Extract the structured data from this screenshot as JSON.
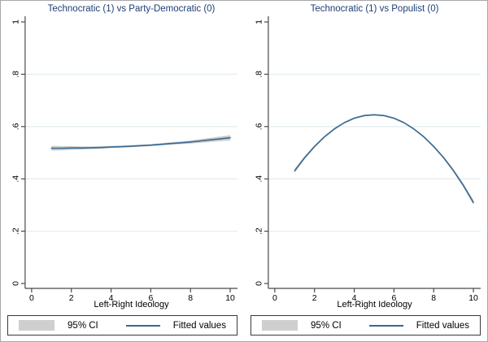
{
  "colors": {
    "fitted_line": "#376a93",
    "ci_band": "#cccccc",
    "gridline": "#e4eef3",
    "axis": "#4a4a4a",
    "tick_label": "#000000",
    "title_text": "#1e3e77",
    "legend_border": "#3a3a3a",
    "legend_swatch": "#cfcfcf",
    "figure_border": "#a8a8a8"
  },
  "chart_data": [
    {
      "type": "line",
      "title": "Technocratic (1) vs Party-Democratic (0)",
      "xlabel": "Left-Right Ideology",
      "ylabel": "",
      "xlim": [
        0,
        10
      ],
      "ylim": [
        0,
        1
      ],
      "x_tick_values": [
        0,
        2,
        4,
        6,
        8,
        10
      ],
      "x_tick_labels": [
        "0",
        "2",
        "4",
        "6",
        "8",
        "10"
      ],
      "y_tick_values": [
        0,
        0.2,
        0.4,
        0.6,
        0.8,
        1
      ],
      "y_tick_labels": [
        "0",
        ".2",
        ".4",
        ".6",
        ".8",
        "1"
      ],
      "grid_y": [
        0.2,
        0.4,
        0.6,
        0.8
      ],
      "legend_ci": "95% CI",
      "legend_fitted": "Fitted values",
      "x": [
        1,
        1.5,
        2,
        2.5,
        3,
        3.5,
        4,
        4.5,
        5,
        5.5,
        6,
        6.5,
        7,
        7.5,
        8,
        8.5,
        9,
        9.5,
        10
      ],
      "fitted": [
        0.517,
        0.517,
        0.518,
        0.518,
        0.519,
        0.52,
        0.522,
        0.523,
        0.525,
        0.527,
        0.529,
        0.532,
        0.535,
        0.538,
        0.541,
        0.545,
        0.549,
        0.553,
        0.557
      ],
      "ci_half": [
        0.009,
        0.008,
        0.007,
        0.006,
        0.005,
        0.005,
        0.004,
        0.004,
        0.004,
        0.004,
        0.004,
        0.004,
        0.005,
        0.005,
        0.006,
        0.007,
        0.008,
        0.009,
        0.01
      ]
    },
    {
      "type": "line",
      "title": "Technocratic (1) vs Populist (0)",
      "xlabel": "Left-Right Ideology",
      "ylabel": "",
      "xlim": [
        0,
        10
      ],
      "ylim": [
        0,
        1
      ],
      "x_tick_values": [
        0,
        2,
        4,
        6,
        8,
        10
      ],
      "x_tick_labels": [
        "0",
        "2",
        "4",
        "6",
        "8",
        "10"
      ],
      "y_tick_values": [
        0,
        0.2,
        0.4,
        0.6,
        0.8,
        1
      ],
      "y_tick_labels": [
        "0",
        ".2",
        ".4",
        ".6",
        ".8",
        "1"
      ],
      "grid_y": [
        0.2,
        0.4,
        0.6,
        0.8
      ],
      "legend_ci": "95% CI",
      "legend_fitted": "Fitted values",
      "x": [
        1,
        1.5,
        2,
        2.5,
        3,
        3.5,
        4,
        4.5,
        5,
        5.5,
        6,
        6.5,
        7,
        7.5,
        8,
        8.5,
        9,
        9.5,
        10
      ],
      "fitted": [
        0.431,
        0.481,
        0.524,
        0.561,
        0.591,
        0.615,
        0.632,
        0.642,
        0.645,
        0.642,
        0.632,
        0.615,
        0.591,
        0.561,
        0.524,
        0.481,
        0.431,
        0.374,
        0.31
      ],
      "ci_half": [
        0.008,
        0.006,
        0.005,
        0.004,
        0.004,
        0.003,
        0.003,
        0.003,
        0.003,
        0.003,
        0.003,
        0.003,
        0.003,
        0.004,
        0.004,
        0.005,
        0.006,
        0.007,
        0.009
      ]
    }
  ]
}
